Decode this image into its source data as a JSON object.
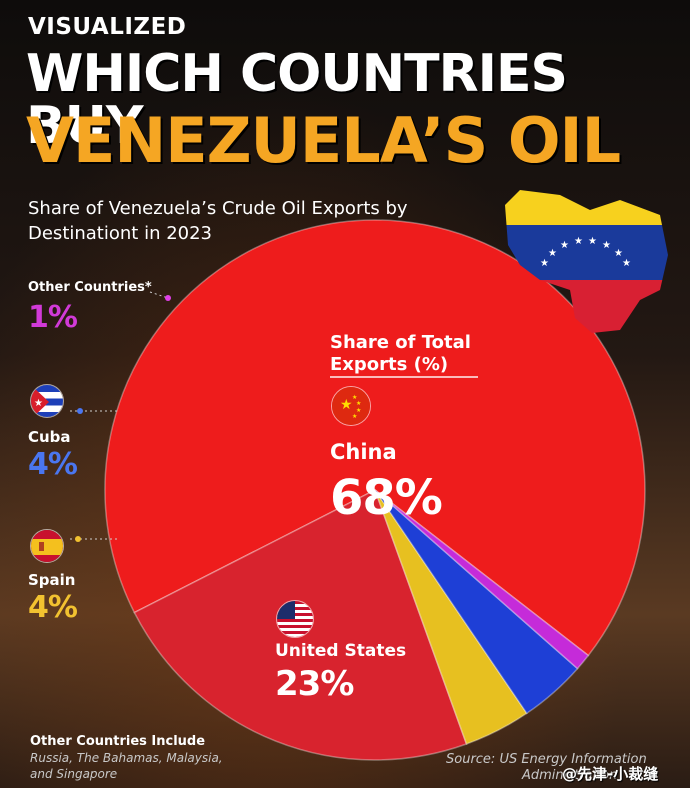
{
  "header": {
    "eyebrow": "VISUALIZED",
    "title_line1": "WHICH COUNTRIES BUY",
    "title_line2": "VENEZUELA’S OIL",
    "subtitle": "Share of Venezuela’s Crude Oil Exports by Destinationt in 2023"
  },
  "legend": {
    "title_line1": "Share of Total",
    "title_line2": "Exports (%)"
  },
  "chart_data": {
    "type": "pie",
    "title": "Share of Venezuela’s Crude Oil Exports by Destinationt in 2023",
    "categories": [
      "China",
      "United States",
      "Spain",
      "Cuba",
      "Other Countries*"
    ],
    "values": [
      68,
      23,
      4,
      4,
      1
    ],
    "value_labels": [
      "68%",
      "23%",
      "4%",
      "4%",
      "1%"
    ],
    "colors": [
      "#ee1c1c",
      "#d8232e",
      "#e7c020",
      "#1e3fd6",
      "#c52bd9"
    ]
  },
  "labels": {
    "china": {
      "name": "China",
      "value": "68%"
    },
    "us": {
      "name": "United States",
      "value": "23%"
    },
    "spain": {
      "name": "Spain",
      "value": "4%"
    },
    "cuba": {
      "name": "Cuba",
      "value": "4%"
    },
    "other": {
      "name": "Other Countries*",
      "value": "1%"
    }
  },
  "footnote": {
    "title": "Other Countries Include",
    "body": "Russia, The Bahamas, Malaysia, and Singapore"
  },
  "source": {
    "line1": "Source: US Energy Information",
    "line2": "Administration"
  },
  "watermark": "@先津-小裁缝",
  "icons": [
    "venezuela-map-flag-icon",
    "china-flag-icon",
    "us-flag-icon",
    "cuba-flag-icon",
    "spain-flag-icon"
  ]
}
